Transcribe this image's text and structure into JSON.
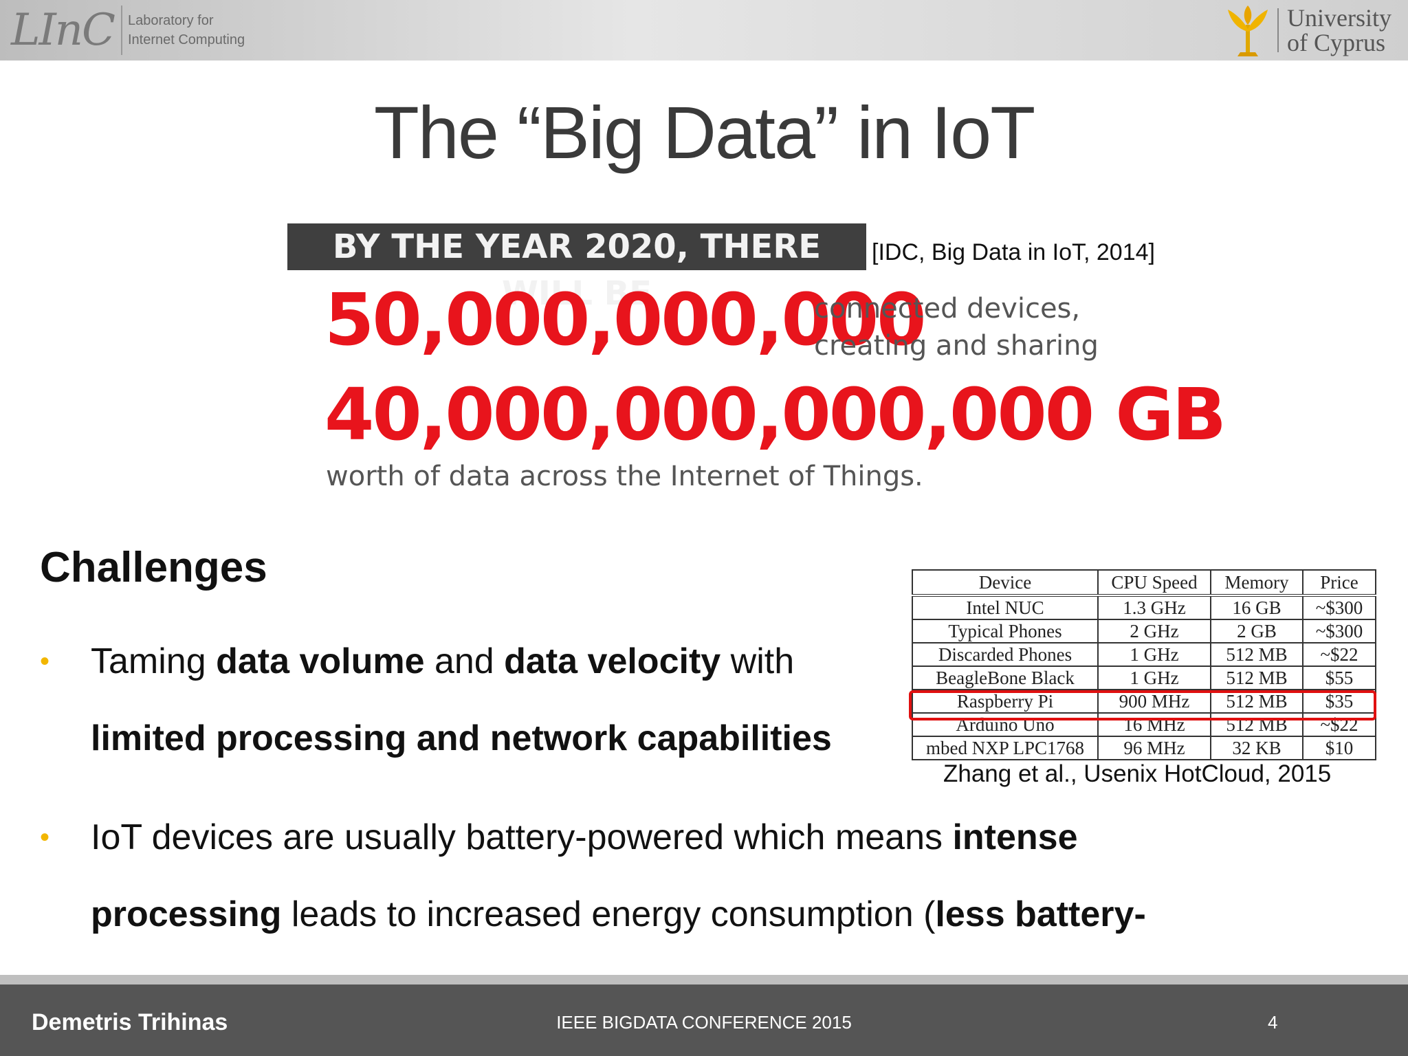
{
  "header": {
    "linc_mark": "LInC",
    "linc_line1": "Laboratory for",
    "linc_line2": "Internet Computing",
    "uni_line1": "University",
    "uni_line2": "of Cyprus"
  },
  "title": "The “Big Data” in IoT",
  "banner": "BY THE YEAR 2020, THERE WILL BE",
  "citation": "[IDC, Big Data in IoT, 2014]",
  "stat1": {
    "number": "50,000,000,000",
    "line1": "connected devices,",
    "line2": "creating and sharing"
  },
  "stat2": {
    "number": "40,000,000,000,000 GB"
  },
  "worth": "worth of data across the Internet of Things.",
  "challenges": "Challenges",
  "bullets": [
    {
      "p1": "Taming ",
      "b1": "data volume",
      "p2": " and ",
      "b2": "data velocity",
      "p3": " with",
      "b3": "limited processing and network capabilities"
    },
    {
      "p1": "IoT devices are usually battery-powered which means ",
      "b1": "intense",
      "b2": "processing",
      "p2": " leads to increased energy consumption (",
      "b3": "less battery-life",
      "p3": ")"
    }
  ],
  "table": {
    "headers": [
      "Device",
      "CPU Speed",
      "Memory",
      "Price"
    ],
    "rows": [
      [
        "Intel NUC",
        "1.3 GHz",
        "16 GB",
        "~$300"
      ],
      [
        "Typical Phones",
        "2 GHz",
        "2 GB",
        "~$300"
      ],
      [
        "Discarded Phones",
        "1 GHz",
        "512 MB",
        "~$22"
      ],
      [
        "BeagleBone Black",
        "1 GHz",
        "512 MB",
        "$55"
      ],
      [
        "Raspberry Pi",
        "900 MHz",
        "512 MB",
        "$35"
      ],
      [
        "Arduino Uno",
        "16 MHz",
        "512 MB",
        "~$22"
      ],
      [
        "mbed NXP LPC1768",
        "96 MHz",
        "32 KB",
        "$10"
      ]
    ],
    "caption": "Zhang et al., Usenix HotCloud, 2015"
  },
  "footer": {
    "author": "Demetris Trihinas",
    "conference": "IEEE BIGDATA CONFERENCE 2015",
    "page": "4"
  },
  "colors": {
    "accent_red": "#e8141c",
    "bullet_yellow": "#f2b600",
    "footer_gray": "#555555"
  }
}
